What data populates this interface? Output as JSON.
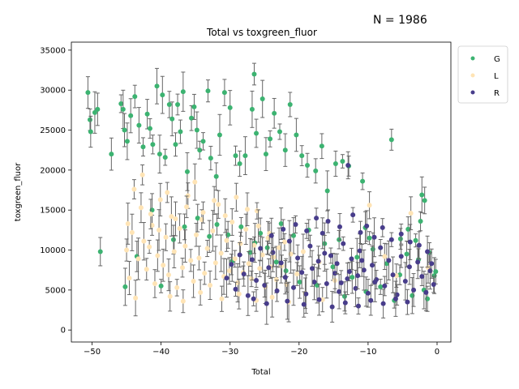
{
  "annotation": "N = 1986",
  "chart_data": {
    "type": "scatter",
    "title": "Total vs toxgreen_fluor",
    "xlabel": "Total",
    "ylabel": "toxgreen_fluor",
    "xlim": [
      -53,
      2
    ],
    "ylim": [
      -1500,
      36000
    ],
    "xticks": [
      -50,
      -40,
      -30,
      -20,
      -10,
      0
    ],
    "yticks": [
      0,
      5000,
      10000,
      15000,
      20000,
      25000,
      30000,
      35000
    ],
    "error_bars": true,
    "legend_position": "outside-top-right",
    "series": [
      {
        "name": "G",
        "color": "#3cb371",
        "points": [
          [
            -50.6,
            29700
          ],
          [
            -50.3,
            26300
          ],
          [
            -50.2,
            24800
          ],
          [
            -49.6,
            27200
          ],
          [
            -49.2,
            27600
          ],
          [
            -47.2,
            22000
          ],
          [
            -45.8,
            28300
          ],
          [
            -45.5,
            27600
          ],
          [
            -45.3,
            25000
          ],
          [
            -44.9,
            23600
          ],
          [
            -44.4,
            26800
          ],
          [
            -43.8,
            29200
          ],
          [
            -43.2,
            25600
          ],
          [
            -42.6,
            22900
          ],
          [
            -42.0,
            27000
          ],
          [
            -41.6,
            25200
          ],
          [
            -41.2,
            23200
          ],
          [
            -40.6,
            30500
          ],
          [
            -40.2,
            22000
          ],
          [
            -39.8,
            29400
          ],
          [
            -39.4,
            21600
          ],
          [
            -38.8,
            28200
          ],
          [
            -38.4,
            26400
          ],
          [
            -37.9,
            23200
          ],
          [
            -37.6,
            28200
          ],
          [
            -37.2,
            24800
          ],
          [
            -36.8,
            29800
          ],
          [
            -36.2,
            19800
          ],
          [
            -35.6,
            26500
          ],
          [
            -35.2,
            27900
          ],
          [
            -34.8,
            25000
          ],
          [
            -34.4,
            22500
          ],
          [
            -33.9,
            23600
          ],
          [
            -33.2,
            29900
          ],
          [
            -32.8,
            21500
          ],
          [
            -32.0,
            19200
          ],
          [
            -31.5,
            24400
          ],
          [
            -30.8,
            29700
          ],
          [
            -30.0,
            27800
          ],
          [
            -29.2,
            21800
          ],
          [
            -28.6,
            20800
          ],
          [
            -27.8,
            21800
          ],
          [
            -26.8,
            27600
          ],
          [
            -26.5,
            32000
          ],
          [
            -26.2,
            24600
          ],
          [
            -25.3,
            28900
          ],
          [
            -24.8,
            22000
          ],
          [
            -24.2,
            23900
          ],
          [
            -23.6,
            27100
          ],
          [
            -22.8,
            24800
          ],
          [
            -22.0,
            22500
          ],
          [
            -21.3,
            28200
          ],
          [
            -20.4,
            24400
          ],
          [
            -19.6,
            21800
          ],
          [
            -18.8,
            20600
          ],
          [
            -17.6,
            19900
          ],
          [
            -16.7,
            23000
          ],
          [
            -15.9,
            17400
          ],
          [
            -14.7,
            20800
          ],
          [
            -13.7,
            21100
          ],
          [
            -12.8,
            20500
          ],
          [
            -10.8,
            18600
          ],
          [
            -10.4,
            12800
          ],
          [
            -9.8,
            11500
          ],
          [
            -6.6,
            23800
          ],
          [
            -5.3,
            11400
          ],
          [
            -4.2,
            12600
          ],
          [
            -2.4,
            13600
          ],
          [
            -2.2,
            16900
          ],
          [
            -1.8,
            16200
          ],
          [
            -48.8,
            9800
          ],
          [
            -45.2,
            5400
          ],
          [
            -43.5,
            9200
          ],
          [
            -41.3,
            15000
          ],
          [
            -40.0,
            5500
          ],
          [
            -38.2,
            11300
          ],
          [
            -36.6,
            12900
          ],
          [
            -34.7,
            14000
          ],
          [
            -33.0,
            11700
          ],
          [
            -31.9,
            13200
          ],
          [
            -30.3,
            11900
          ],
          [
            -29.7,
            8600
          ],
          [
            -28.4,
            12900
          ],
          [
            -27.1,
            9700
          ],
          [
            -26.4,
            10900
          ],
          [
            -25.6,
            12100
          ],
          [
            -24.6,
            10300
          ],
          [
            -23.3,
            8500
          ],
          [
            -22.6,
            13300
          ],
          [
            -21.9,
            7400
          ],
          [
            -20.8,
            11800
          ],
          [
            -19.9,
            6000
          ],
          [
            -18.6,
            12500
          ],
          [
            -17.4,
            5600
          ],
          [
            -16.3,
            10800
          ],
          [
            -15.1,
            7900
          ],
          [
            -14.2,
            11300
          ],
          [
            -13.4,
            4200
          ],
          [
            -12.3,
            6600
          ],
          [
            -11.6,
            9100
          ],
          [
            -10.3,
            4800
          ],
          [
            -9.3,
            10100
          ],
          [
            -8.2,
            5400
          ],
          [
            -7.3,
            8300
          ],
          [
            -6.2,
            3700
          ],
          [
            -5.4,
            6900
          ],
          [
            -4.4,
            9500
          ],
          [
            -3.6,
            4300
          ],
          [
            -2.7,
            8800
          ],
          [
            -1.9,
            5000
          ],
          [
            -1.1,
            9700
          ],
          [
            -0.4,
            6800
          ],
          [
            -0.2,
            7300
          ],
          [
            -1.4,
            3900
          ],
          [
            -3.1,
            11200
          ]
        ]
      },
      {
        "name": "L",
        "color": "#ffe4b5",
        "points": [
          [
            -45.0,
            10000
          ],
          [
            -44.6,
            6500
          ],
          [
            -44.2,
            12200
          ],
          [
            -43.7,
            4000
          ],
          [
            -43.3,
            8900
          ],
          [
            -42.9,
            15300
          ],
          [
            -42.5,
            11100
          ],
          [
            -42.1,
            7600
          ],
          [
            -41.7,
            10400
          ],
          [
            -41.3,
            13100
          ],
          [
            -40.9,
            5800
          ],
          [
            -40.5,
            9300
          ],
          [
            -40.1,
            16300
          ],
          [
            -39.7,
            8100
          ],
          [
            -39.3,
            11600
          ],
          [
            -38.9,
            6900
          ],
          [
            -38.5,
            14200
          ],
          [
            -38.1,
            9800
          ],
          [
            -37.7,
            5300
          ],
          [
            -37.3,
            12700
          ],
          [
            -36.9,
            7800
          ],
          [
            -36.5,
            10500
          ],
          [
            -36.1,
            16800
          ],
          [
            -35.7,
            8700
          ],
          [
            -35.3,
            6100
          ],
          [
            -34.9,
            11900
          ],
          [
            -34.5,
            9000
          ],
          [
            -34.1,
            13800
          ],
          [
            -33.7,
            7100
          ],
          [
            -33.3,
            10200
          ],
          [
            -32.9,
            5600
          ],
          [
            -32.5,
            12400
          ],
          [
            -32.1,
            8400
          ],
          [
            -31.7,
            15700
          ],
          [
            -31.3,
            9600
          ],
          [
            -30.9,
            6700
          ],
          [
            -30.5,
            11200
          ],
          [
            -30.1,
            7400
          ],
          [
            -29.7,
            13500
          ],
          [
            -29.3,
            8900
          ],
          [
            -28.9,
            5900
          ],
          [
            -28.5,
            10800
          ],
          [
            -28.1,
            7200
          ],
          [
            -27.7,
            12600
          ],
          [
            -27.3,
            8300
          ],
          [
            -26.9,
            6400
          ],
          [
            -26.5,
            10600
          ],
          [
            -26.1,
            14900
          ],
          [
            -25.7,
            7700
          ],
          [
            -25.3,
            9400
          ],
          [
            -24.9,
            5400
          ],
          [
            -24.5,
            11500
          ],
          [
            -24.1,
            7900
          ],
          [
            -23.7,
            9100
          ],
          [
            -23.3,
            6300
          ],
          [
            -22.9,
            10300
          ],
          [
            -22.5,
            8000
          ],
          [
            -21.8,
            5700
          ],
          [
            -21.2,
            9500
          ],
          [
            -20.3,
            7000
          ],
          [
            -44.8,
            13300
          ],
          [
            -43.9,
            17600
          ],
          [
            -42.7,
            19400
          ],
          [
            -41.5,
            14500
          ],
          [
            -40.3,
            12500
          ],
          [
            -39.1,
            17200
          ],
          [
            -37.9,
            13900
          ],
          [
            -36.3,
            15400
          ],
          [
            -35.1,
            18500
          ],
          [
            -33.9,
            14700
          ],
          [
            -32.3,
            16200
          ],
          [
            -30.7,
            14300
          ],
          [
            -29.1,
            16600
          ],
          [
            -27.5,
            15100
          ],
          [
            -25.9,
            13000
          ],
          [
            -24.3,
            12100
          ],
          [
            -22.1,
            11000
          ],
          [
            -19.4,
            9800
          ],
          [
            -17.1,
            8500
          ],
          [
            -14.8,
            6200
          ],
          [
            -9.8,
            15600
          ],
          [
            -7.6,
            9200
          ],
          [
            -5.9,
            6800
          ],
          [
            -3.8,
            14600
          ],
          [
            -1.3,
            7800
          ],
          [
            -38.7,
            4200
          ],
          [
            -36.8,
            3600
          ],
          [
            -34.3,
            4700
          ],
          [
            -31.2,
            3900
          ],
          [
            -28.7,
            4500
          ],
          [
            -26.2,
            3700
          ],
          [
            -23.9,
            4100
          ],
          [
            -21.5,
            3500
          ],
          [
            -19.1,
            4600
          ],
          [
            -16.6,
            3800
          ]
        ]
      },
      {
        "name": "R",
        "color": "#483d8b",
        "points": [
          [
            -30.5,
            6500
          ],
          [
            -29.8,
            8200
          ],
          [
            -29.2,
            5100
          ],
          [
            -28.6,
            9400
          ],
          [
            -28.0,
            7000
          ],
          [
            -27.4,
            4300
          ],
          [
            -26.8,
            8800
          ],
          [
            -26.2,
            6200
          ],
          [
            -25.6,
            10200
          ],
          [
            -25.0,
            5600
          ],
          [
            -24.4,
            7800
          ],
          [
            -23.8,
            9700
          ],
          [
            -23.2,
            4900
          ],
          [
            -22.6,
            8400
          ],
          [
            -22.0,
            6600
          ],
          [
            -21.4,
            11100
          ],
          [
            -20.8,
            5300
          ],
          [
            -20.2,
            9000
          ],
          [
            -19.6,
            7200
          ],
          [
            -19.0,
            4500
          ],
          [
            -18.4,
            10500
          ],
          [
            -17.8,
            6000
          ],
          [
            -17.2,
            8600
          ],
          [
            -16.6,
            12100
          ],
          [
            -16.0,
            5800
          ],
          [
            -15.4,
            9300
          ],
          [
            -14.8,
            7100
          ],
          [
            -14.2,
            4800
          ],
          [
            -13.6,
            10800
          ],
          [
            -13.0,
            6400
          ],
          [
            -12.4,
            8900
          ],
          [
            -11.8,
            5200
          ],
          [
            -11.2,
            9900
          ],
          [
            -10.6,
            7500
          ],
          [
            -10.0,
            4600
          ],
          [
            -9.4,
            8100
          ],
          [
            -8.8,
            6300
          ],
          [
            -8.2,
            10300
          ],
          [
            -7.6,
            5500
          ],
          [
            -7.0,
            8700
          ],
          [
            -6.4,
            6900
          ],
          [
            -5.8,
            4400
          ],
          [
            -5.2,
            9200
          ],
          [
            -4.6,
            6100
          ],
          [
            -4.0,
            7900
          ],
          [
            -3.4,
            5000
          ],
          [
            -2.8,
            8500
          ],
          [
            -2.2,
            6700
          ],
          [
            -1.6,
            4700
          ],
          [
            -1.0,
            7400
          ],
          [
            -24.0,
            11800
          ],
          [
            -22.3,
            12600
          ],
          [
            -20.5,
            13200
          ],
          [
            -18.9,
            12400
          ],
          [
            -17.5,
            14000
          ],
          [
            -15.8,
            13600
          ],
          [
            -14.1,
            12900
          ],
          [
            -12.9,
            20600
          ],
          [
            -12.2,
            14400
          ],
          [
            -11.1,
            12200
          ],
          [
            -10.2,
            13000
          ],
          [
            -9.1,
            11600
          ],
          [
            -7.9,
            12800
          ],
          [
            -6.6,
            11300
          ],
          [
            -5.2,
            12000
          ],
          [
            -3.9,
            11000
          ],
          [
            -2.6,
            10600
          ],
          [
            -1.4,
            9800
          ],
          [
            -0.8,
            8300
          ],
          [
            -0.5,
            5700
          ],
          [
            -21.7,
            3600
          ],
          [
            -19.3,
            3200
          ],
          [
            -17.1,
            3800
          ],
          [
            -15.2,
            2900
          ],
          [
            -13.3,
            3400
          ],
          [
            -11.4,
            3000
          ],
          [
            -9.6,
            3700
          ],
          [
            -7.8,
            3300
          ],
          [
            -6.0,
            3900
          ],
          [
            -4.3,
            3500
          ],
          [
            -26.6,
            3900
          ],
          [
            -24.7,
            3300
          ],
          [
            -18.1,
            7700
          ],
          [
            -16.3,
            9600
          ],
          [
            -14.5,
            8300
          ],
          [
            -12.7,
            7300
          ],
          [
            -10.9,
            8700
          ],
          [
            -9.0,
            6000
          ],
          [
            -13.9,
            5900
          ],
          [
            -11.5,
            6800
          ]
        ]
      }
    ]
  }
}
